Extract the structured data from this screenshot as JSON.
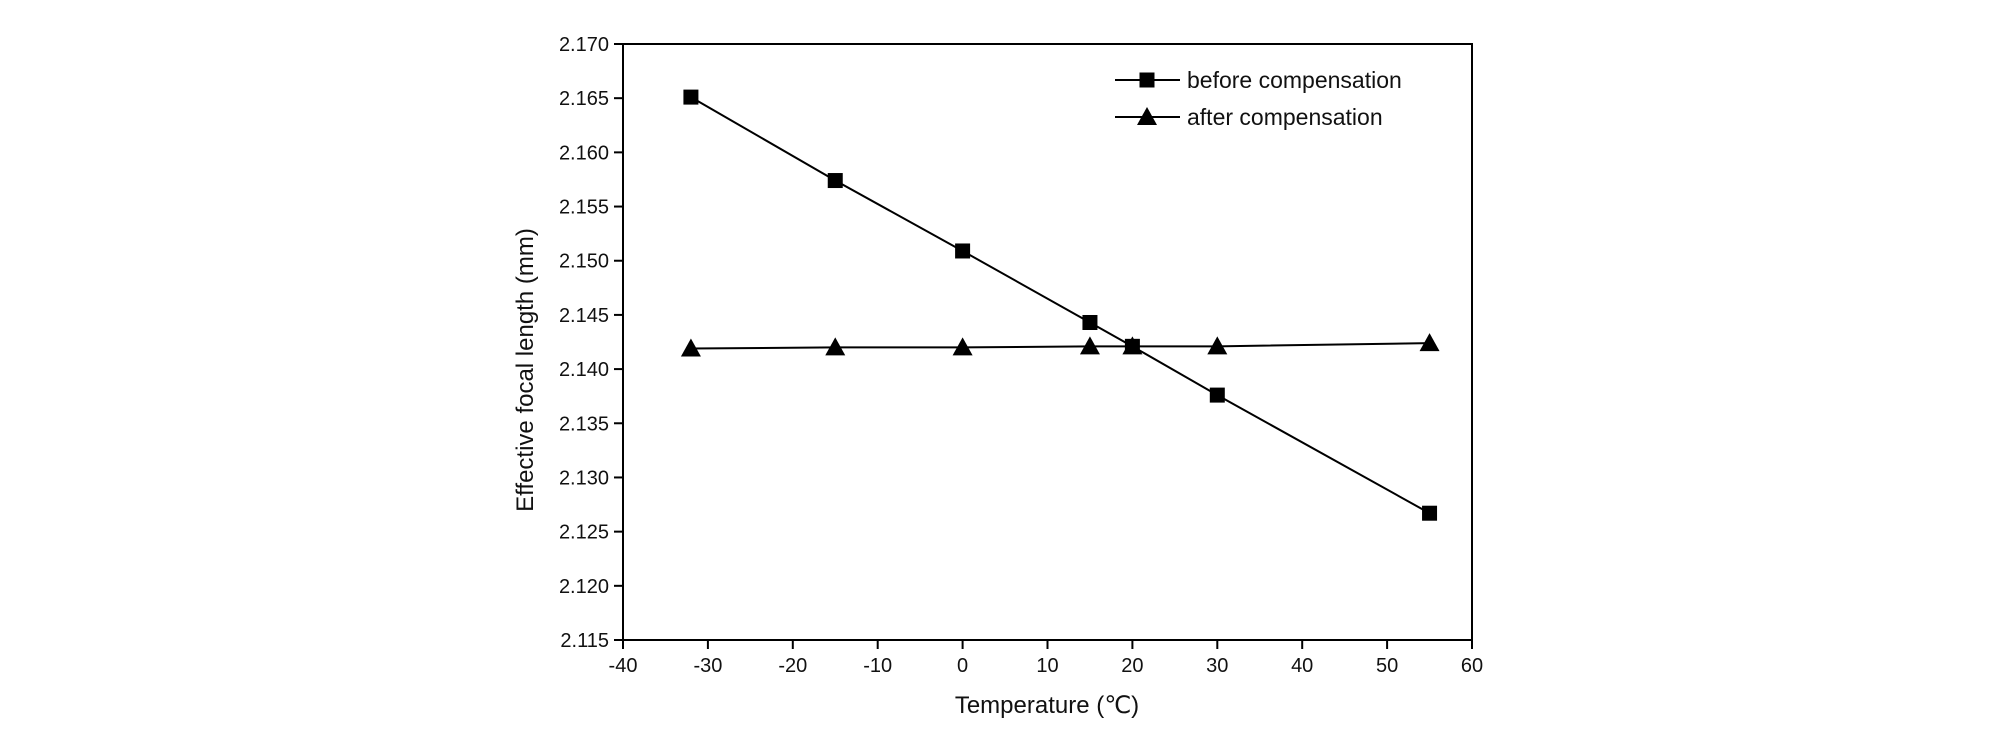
{
  "chart_data": {
    "type": "line",
    "xlabel": "Temperature (℃)",
    "ylabel": "Effective focal length (mm)",
    "xlim": [
      -40,
      60
    ],
    "ylim": [
      2.115,
      2.17
    ],
    "xticks": [
      -40,
      -30,
      -20,
      -10,
      0,
      10,
      20,
      30,
      40,
      50,
      60
    ],
    "yticks": [
      2.115,
      2.12,
      2.125,
      2.13,
      2.135,
      2.14,
      2.145,
      2.15,
      2.155,
      2.16,
      2.165,
      2.17
    ],
    "ytick_decimals": 3,
    "grid": false,
    "legend_position": "top-right",
    "series": [
      {
        "name": "before compensation",
        "marker": "square",
        "color": "#000000",
        "x": [
          -32,
          -15,
          0,
          15,
          20,
          30,
          55
        ],
        "y": [
          2.1651,
          2.1574,
          2.1509,
          2.1443,
          2.1421,
          2.1376,
          2.1267
        ]
      },
      {
        "name": "after compensation",
        "marker": "triangle",
        "color": "#000000",
        "x": [
          -32,
          -15,
          0,
          15,
          20,
          30,
          55
        ],
        "y": [
          2.1419,
          2.142,
          2.142,
          2.1421,
          2.1421,
          2.1421,
          2.1424
        ]
      }
    ]
  }
}
